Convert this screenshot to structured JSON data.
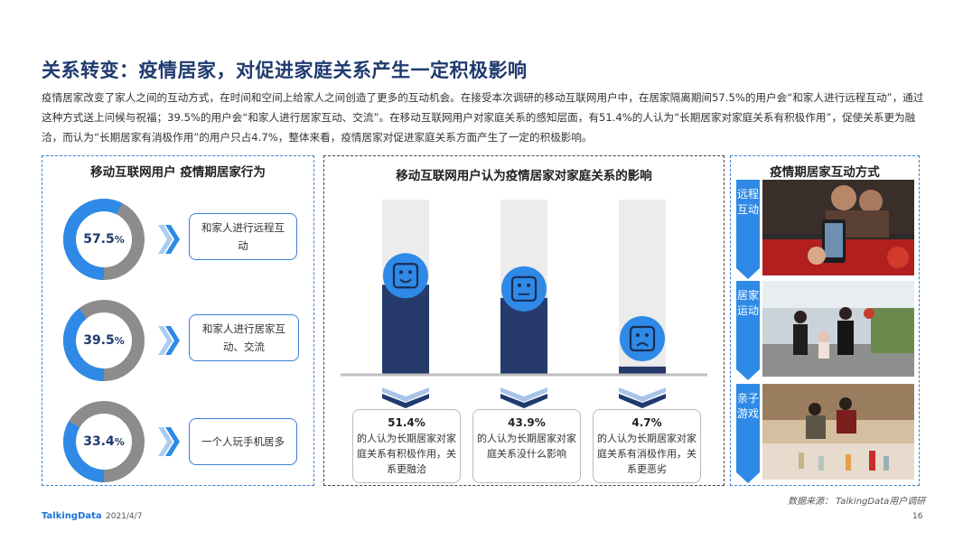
{
  "title": "关系转变：疫情居家，对促进家庭关系产生一定积极影响",
  "intro": "疫情居家改变了家人之间的互动方式，在时间和空间上给家人之间创造了更多的互动机会。在接受本次调研的移动互联网用户中，在居家隔离期间57.5%的用户会“和家人进行远程互动”，通过这种方式送上问候与祝福；39.5%的用户会“和家人进行居家互动、交流”。在移动互联网用户对家庭关系的感知层面，有51.4%的人认为“长期居家对家庭关系有积极作用”，促使关系更为融洽，而认为“长期居家有消极作用”的用户只占4.7%，整体来看，疫情居家对促进家庭关系方面产生了一定的积极影响。",
  "left_panel": {
    "title": "移动互联网用户 疫情期居家行为",
    "items": [
      {
        "value_text": "57.5",
        "pct": "%",
        "label": "和家人进行远程互动"
      },
      {
        "value_text": "39.5",
        "pct": "%",
        "label": "和家人进行居家互动、交流"
      },
      {
        "value_text": "33.4",
        "pct": "%",
        "label": "一个人玩手机居多"
      }
    ]
  },
  "mid_panel": {
    "title": "移动互联网用户认为疫情居家对家庭关系的影响",
    "results": [
      {
        "value": "51.4%",
        "text": "的人认为长期居家对家庭关系有积极作用，关系更融洽"
      },
      {
        "value": "43.9%",
        "text": "的人认为长期居家对家庭关系没什么影响"
      },
      {
        "value": "4.7%",
        "text": "的人认为长期居家对家庭关系有消极作用，关系更恶劣"
      }
    ]
  },
  "right_panel": {
    "title": "疫情期居家互动方式",
    "labels": [
      "远程互动",
      "居家运动",
      "亲子游戏"
    ]
  },
  "chart_data": [
    {
      "type": "pie",
      "categories": [
        "和家人进行远程互动",
        "和家人进行居家互动、交流",
        "一个人玩手机居多"
      ],
      "values": [
        57.5,
        39.5,
        33.4
      ],
      "unit": "%",
      "colors": {
        "filled": "#2e8ae6",
        "rest": "#8c8c8c"
      }
    },
    {
      "type": "bar",
      "categories": [
        "积极作用",
        "没什么影响",
        "消极作用"
      ],
      "values": [
        51.4,
        43.9,
        4.7
      ],
      "unit": "%",
      "ylim": [
        0,
        100
      ],
      "icons": [
        "smile-face-icon",
        "neutral-face-icon",
        "sad-face-icon"
      ],
      "colors": {
        "bar": "#263a6b",
        "track": "#ececec",
        "icon": "#2e8ae6"
      }
    }
  ],
  "source": "数据来源： TalkingData用户调研",
  "footer": {
    "logo": "TalkingData",
    "date": "2021/4/7",
    "page": "16"
  }
}
